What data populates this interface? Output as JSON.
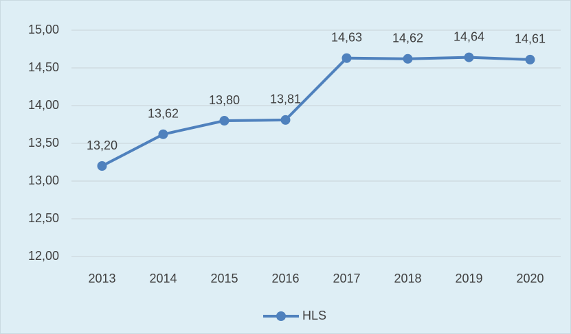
{
  "chart_data": {
    "type": "line",
    "categories": [
      "2013",
      "2014",
      "2015",
      "2016",
      "2017",
      "2018",
      "2019",
      "2020"
    ],
    "series": [
      {
        "name": "HLS",
        "color": "#4f81bd",
        "values": [
          13.2,
          13.62,
          13.8,
          13.81,
          14.63,
          14.62,
          14.64,
          14.61
        ],
        "value_labels": [
          "13,20",
          "13,62",
          "13,80",
          "13,81",
          "14,63",
          "14,62",
          "14,64",
          "14,61"
        ]
      }
    ],
    "ylim": [
      12,
      15
    ],
    "yticks": [
      {
        "value": 12,
        "label": "12,00"
      },
      {
        "value": 12.5,
        "label": "12,50"
      },
      {
        "value": 13,
        "label": "13,00"
      },
      {
        "value": 13.5,
        "label": "13,50"
      },
      {
        "value": 14,
        "label": "14,00"
      },
      {
        "value": 14.5,
        "label": "14,50"
      },
      {
        "value": 15,
        "label": "15,00"
      }
    ],
    "grid": true,
    "legend": "bottom"
  }
}
